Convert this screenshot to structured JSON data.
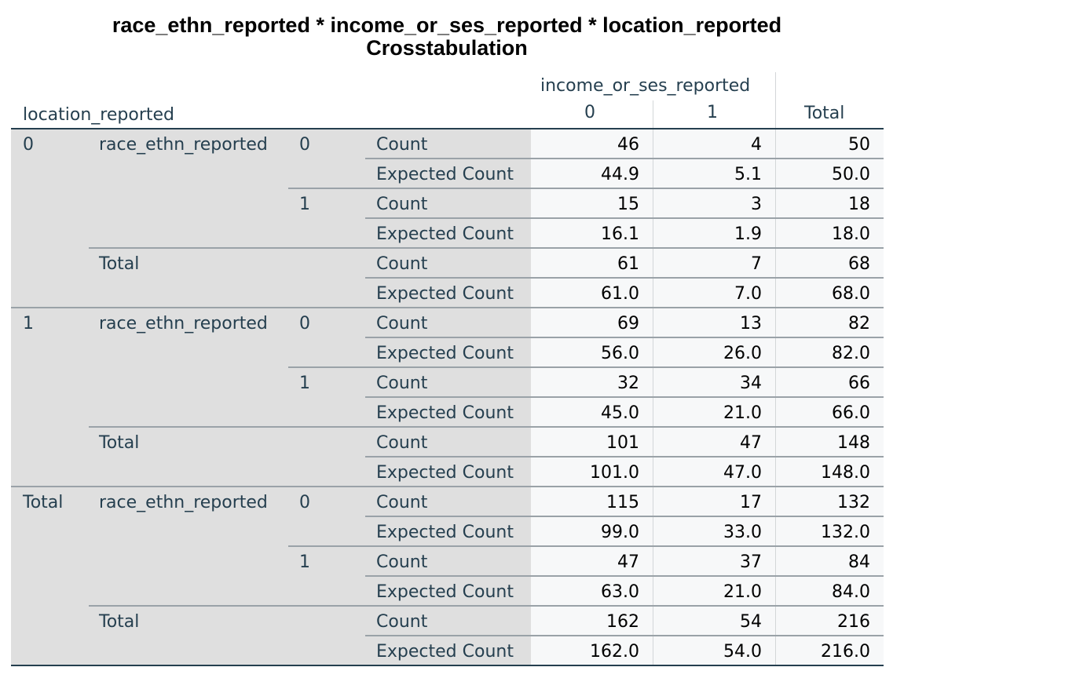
{
  "title_line1": "race_ethn_reported * income_or_ses_reported * location_reported",
  "title_line2": "Crosstabulation",
  "col_var": "income_or_ses_reported",
  "row_layer_var": "location_reported",
  "col_headers": [
    "0",
    "1",
    "Total"
  ],
  "rows": [
    {
      "loc": "0",
      "var": "race_ethn_reported",
      "cat": "0",
      "stat": "Count",
      "v": [
        "46",
        "4",
        "50"
      ]
    },
    {
      "loc": "",
      "var": "",
      "cat": "",
      "stat": "Expected Count",
      "v": [
        "44.9",
        "5.1",
        "50.0"
      ]
    },
    {
      "loc": "",
      "var": "",
      "cat": "1",
      "stat": "Count",
      "v": [
        "15",
        "3",
        "18"
      ]
    },
    {
      "loc": "",
      "var": "",
      "cat": "",
      "stat": "Expected Count",
      "v": [
        "16.1",
        "1.9",
        "18.0"
      ]
    },
    {
      "loc": "",
      "var": "Total",
      "cat": "",
      "stat": "Count",
      "v": [
        "61",
        "7",
        "68"
      ]
    },
    {
      "loc": "",
      "var": "",
      "cat": "",
      "stat": "Expected Count",
      "v": [
        "61.0",
        "7.0",
        "68.0"
      ]
    },
    {
      "loc": "1",
      "var": "race_ethn_reported",
      "cat": "0",
      "stat": "Count",
      "v": [
        "69",
        "13",
        "82"
      ]
    },
    {
      "loc": "",
      "var": "",
      "cat": "",
      "stat": "Expected Count",
      "v": [
        "56.0",
        "26.0",
        "82.0"
      ]
    },
    {
      "loc": "",
      "var": "",
      "cat": "1",
      "stat": "Count",
      "v": [
        "32",
        "34",
        "66"
      ]
    },
    {
      "loc": "",
      "var": "",
      "cat": "",
      "stat": "Expected Count",
      "v": [
        "45.0",
        "21.0",
        "66.0"
      ]
    },
    {
      "loc": "",
      "var": "Total",
      "cat": "",
      "stat": "Count",
      "v": [
        "101",
        "47",
        "148"
      ]
    },
    {
      "loc": "",
      "var": "",
      "cat": "",
      "stat": "Expected Count",
      "v": [
        "101.0",
        "47.0",
        "148.0"
      ]
    },
    {
      "loc": "Total",
      "var": "race_ethn_reported",
      "cat": "0",
      "stat": "Count",
      "v": [
        "115",
        "17",
        "132"
      ]
    },
    {
      "loc": "",
      "var": "",
      "cat": "",
      "stat": "Expected Count",
      "v": [
        "99.0",
        "33.0",
        "132.0"
      ]
    },
    {
      "loc": "",
      "var": "",
      "cat": "1",
      "stat": "Count",
      "v": [
        "47",
        "37",
        "84"
      ]
    },
    {
      "loc": "",
      "var": "",
      "cat": "",
      "stat": "Expected Count",
      "v": [
        "63.0",
        "21.0",
        "84.0"
      ]
    },
    {
      "loc": "",
      "var": "Total",
      "cat": "",
      "stat": "Count",
      "v": [
        "162",
        "54",
        "216"
      ]
    },
    {
      "loc": "",
      "var": "",
      "cat": "",
      "stat": "Expected Count",
      "v": [
        "162.0",
        "54.0",
        "216.0"
      ]
    }
  ]
}
